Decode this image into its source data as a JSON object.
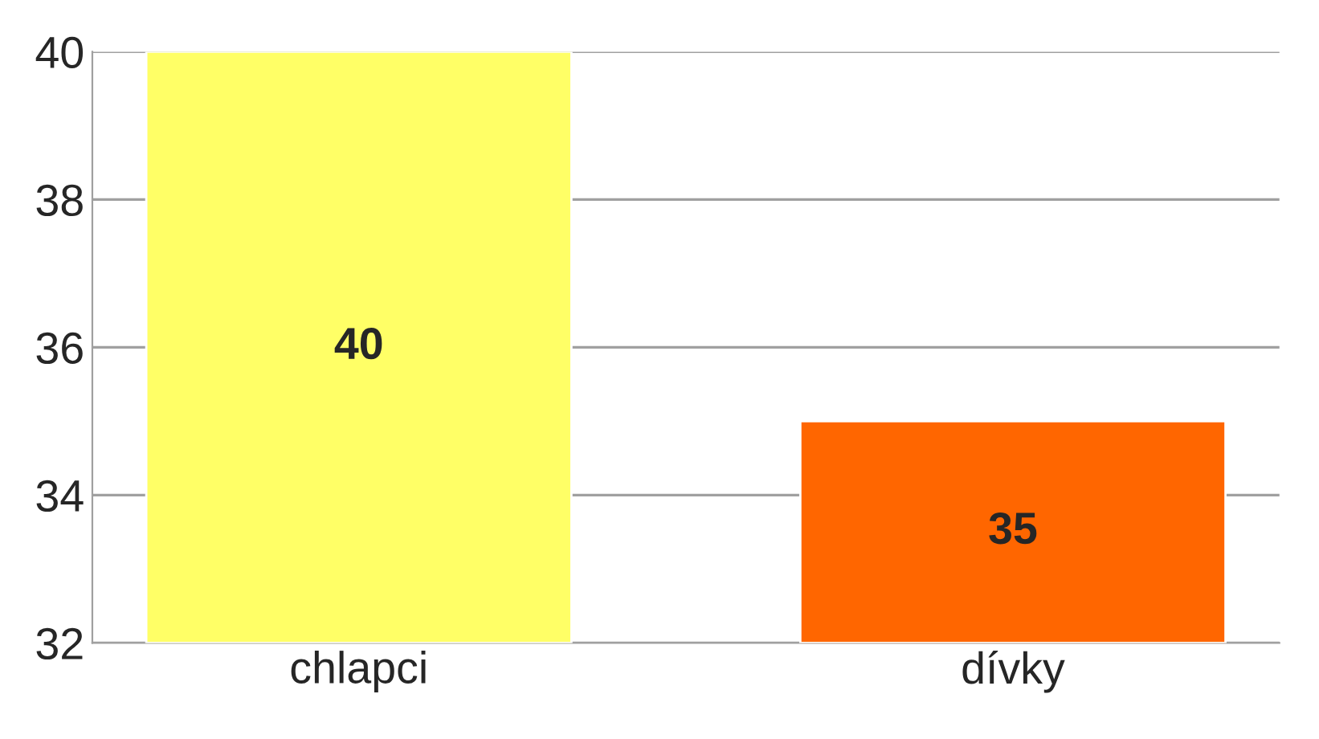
{
  "chart_data": {
    "type": "bar",
    "categories": [
      "chlapci",
      "dívky"
    ],
    "values": [
      40,
      35
    ],
    "colors": [
      "#ffff66",
      "#ff6600"
    ],
    "ylim": [
      32,
      40
    ],
    "yticks": [
      32,
      34,
      36,
      38,
      40
    ],
    "grid": "y",
    "data_labels": true
  }
}
